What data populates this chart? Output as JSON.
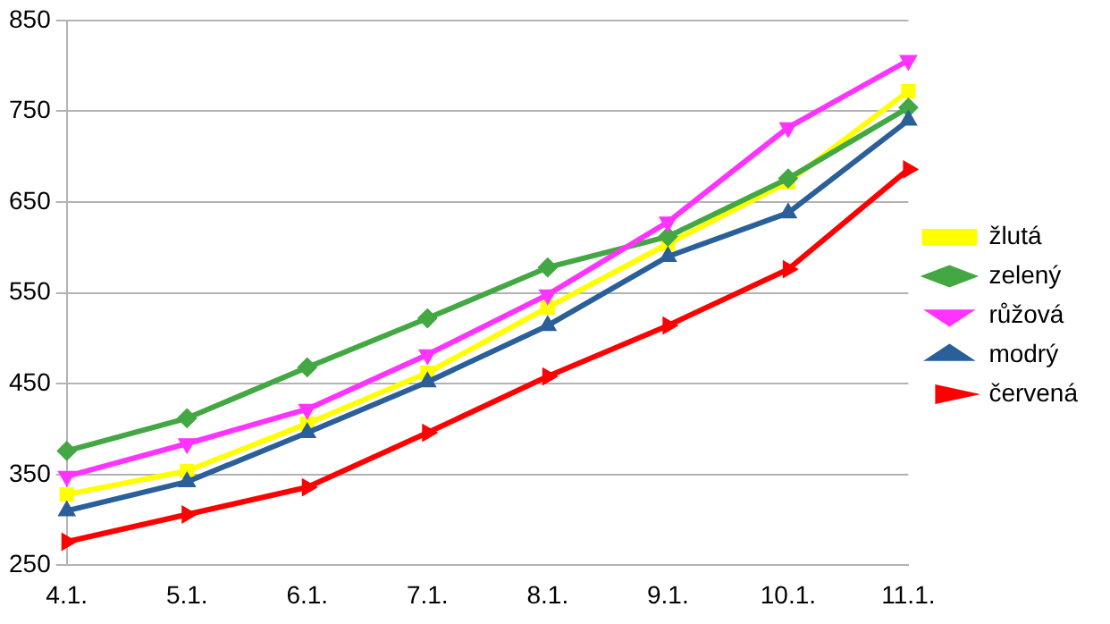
{
  "chart_data": {
    "type": "line",
    "categories": [
      "4.1.",
      "5.1.",
      "6.1.",
      "7.1.",
      "8.1.",
      "9.1.",
      "10.1.",
      "11.1."
    ],
    "series": [
      {
        "name": "žlutá",
        "color": "#ffff00",
        "marker": "square",
        "values": [
          328,
          354,
          406,
          462,
          534,
          604,
          672,
          772
        ]
      },
      {
        "name": "zelený",
        "color": "#43a843",
        "marker": "diamond",
        "values": [
          376,
          412,
          468,
          522,
          578,
          612,
          676,
          754
        ]
      },
      {
        "name": "růžová",
        "color": "#ff33ff",
        "marker": "triangle-down",
        "values": [
          348,
          384,
          422,
          482,
          548,
          628,
          732,
          806
        ]
      },
      {
        "name": "modrý",
        "color": "#2a5f9a",
        "marker": "triangle",
        "values": [
          310,
          342,
          396,
          452,
          514,
          590,
          638,
          740
        ]
      },
      {
        "name": "červená",
        "color": "#ff0000",
        "marker": "triangle-right",
        "values": [
          276,
          306,
          336,
          396,
          458,
          514,
          576,
          686
        ]
      }
    ],
    "ylim": [
      250,
      850
    ],
    "yticks": [
      250,
      350,
      450,
      550,
      650,
      750,
      850
    ],
    "grid": "y",
    "legend": "right",
    "line_style": "solid"
  }
}
